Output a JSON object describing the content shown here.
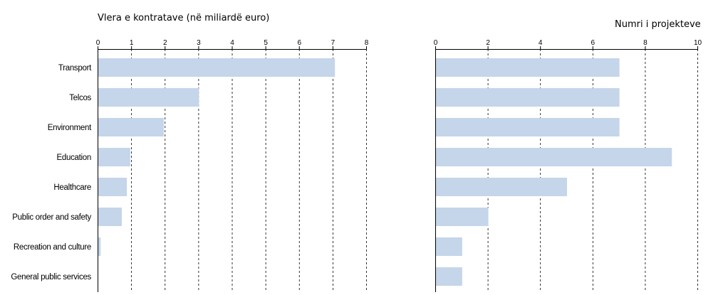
{
  "chart_data": [
    {
      "type": "bar",
      "orientation": "horizontal",
      "title": "Vlera e kontratave (në miliardë euro)",
      "categories": [
        "Transport",
        "Telcos",
        "Environment",
        "Education",
        "Healthcare",
        "Public order and safety",
        "Recreation and culture",
        "General public services"
      ],
      "values": [
        7.05,
        3.0,
        1.95,
        0.95,
        0.85,
        0.7,
        0.07,
        0.0
      ],
      "xlim": [
        0,
        8
      ],
      "ticks": [
        "0",
        "1",
        "2",
        "3",
        "4",
        "5",
        "6",
        "7",
        "8"
      ],
      "grid": "vertical-dashed",
      "bar_color": "#c5d5ea"
    },
    {
      "type": "bar",
      "orientation": "horizontal",
      "title": "Numri i projekteve",
      "categories": [
        "Transport",
        "Telcos",
        "Environment",
        "Education",
        "Healthcare",
        "Public order and safety",
        "Recreation and culture",
        "General public services"
      ],
      "values": [
        7,
        7,
        7,
        9,
        5,
        2,
        1,
        1
      ],
      "xlim": [
        0,
        10
      ],
      "ticks": [
        "0",
        "2",
        "4",
        "6",
        "8",
        "10"
      ],
      "grid": "vertical-dashed",
      "bar_color": "#c5d5ea"
    }
  ]
}
